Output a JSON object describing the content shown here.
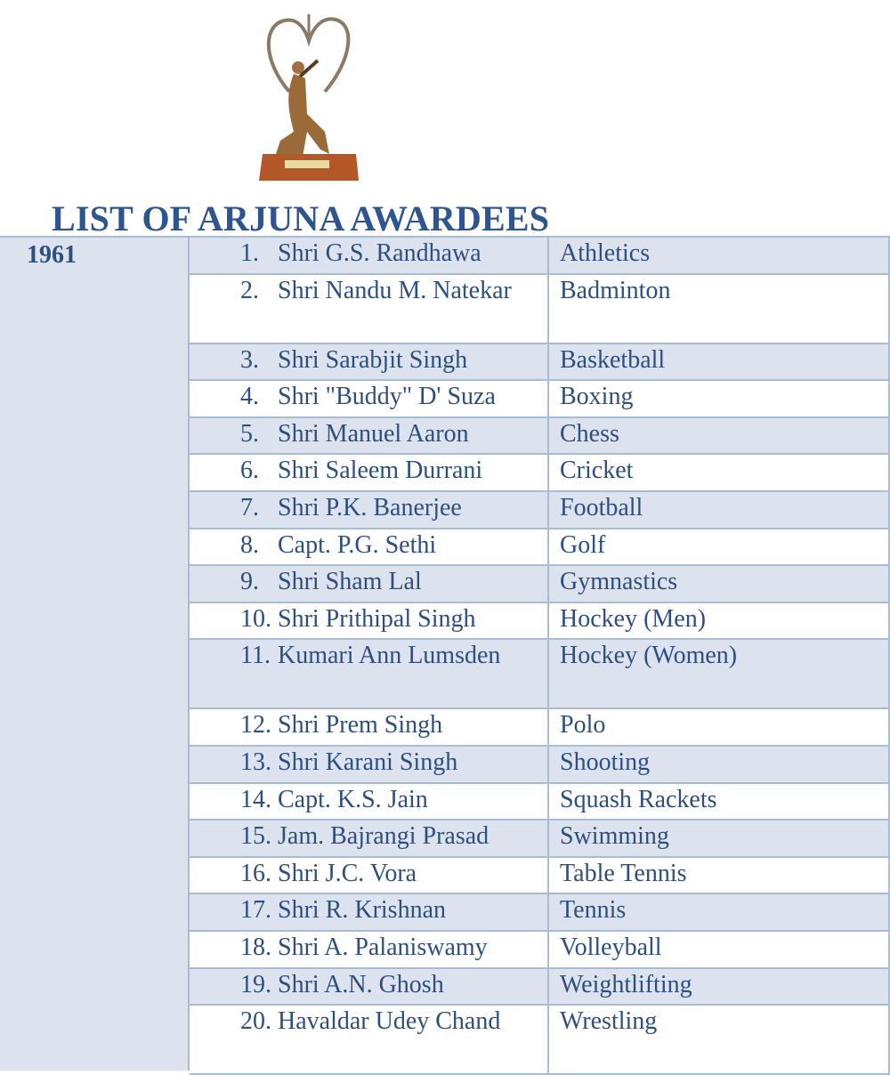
{
  "title": "LIST OF ARJUNA AWARDEES",
  "year": "1961",
  "awardees": [
    {
      "num": "1.",
      "name": "Shri G.S. Randhawa",
      "sport": "Athletics"
    },
    {
      "num": "2.",
      "name": "Shri Nandu M. Natekar",
      "sport": "Badminton"
    },
    {
      "num": "3.",
      "name": "Shri Sarabjit Singh",
      "sport": "Basketball"
    },
    {
      "num": "4.",
      "name": "Shri \"Buddy\" D' Suza",
      "sport": "Boxing"
    },
    {
      "num": "5.",
      "name": "Shri Manuel Aaron",
      "sport": "Chess"
    },
    {
      "num": "6.",
      "name": "Shri Saleem Durrani",
      "sport": "Cricket"
    },
    {
      "num": "7.",
      "name": "Shri P.K. Banerjee",
      "sport": "Football"
    },
    {
      "num": "8.",
      "name": "Capt. P.G. Sethi",
      "sport": "Golf"
    },
    {
      "num": "9.",
      "name": "Shri Sham Lal",
      "sport": "Gymnastics"
    },
    {
      "num": "10.",
      "name": "Shri Prithipal Singh",
      "sport": "Hockey (Men)"
    },
    {
      "num": "11.",
      "name": "Kumari Ann Lumsden",
      "sport": "Hockey (Women)"
    },
    {
      "num": "12.",
      "name": "Shri Prem Singh",
      "sport": "Polo"
    },
    {
      "num": "13.",
      "name": "Shri Karani Singh",
      "sport": "Shooting"
    },
    {
      "num": "14.",
      "name": "Capt. K.S. Jain",
      "sport": "Squash Rackets"
    },
    {
      "num": "15.",
      "name": "Jam. Bajrangi Prasad",
      "sport": "Swimming"
    },
    {
      "num": "16.",
      "name": "Shri J.C. Vora",
      "sport": "Table Tennis"
    },
    {
      "num": "17.",
      "name": "Shri R. Krishnan",
      "sport": "Tennis"
    },
    {
      "num": "18.",
      "name": "Shri A. Palaniswamy",
      "sport": "Volleyball"
    },
    {
      "num": "19.",
      "name": "Shri A.N. Ghosh",
      "sport": "Weightlifting"
    },
    {
      "num": "20.",
      "name": "Havaldar Udey Chand",
      "sport": "Wrestling"
    }
  ],
  "colors": {
    "text": "#2e4f7e",
    "shade": "#dce3ee",
    "border": "#a9bcd6"
  },
  "image": "arjuna-award-trophy"
}
